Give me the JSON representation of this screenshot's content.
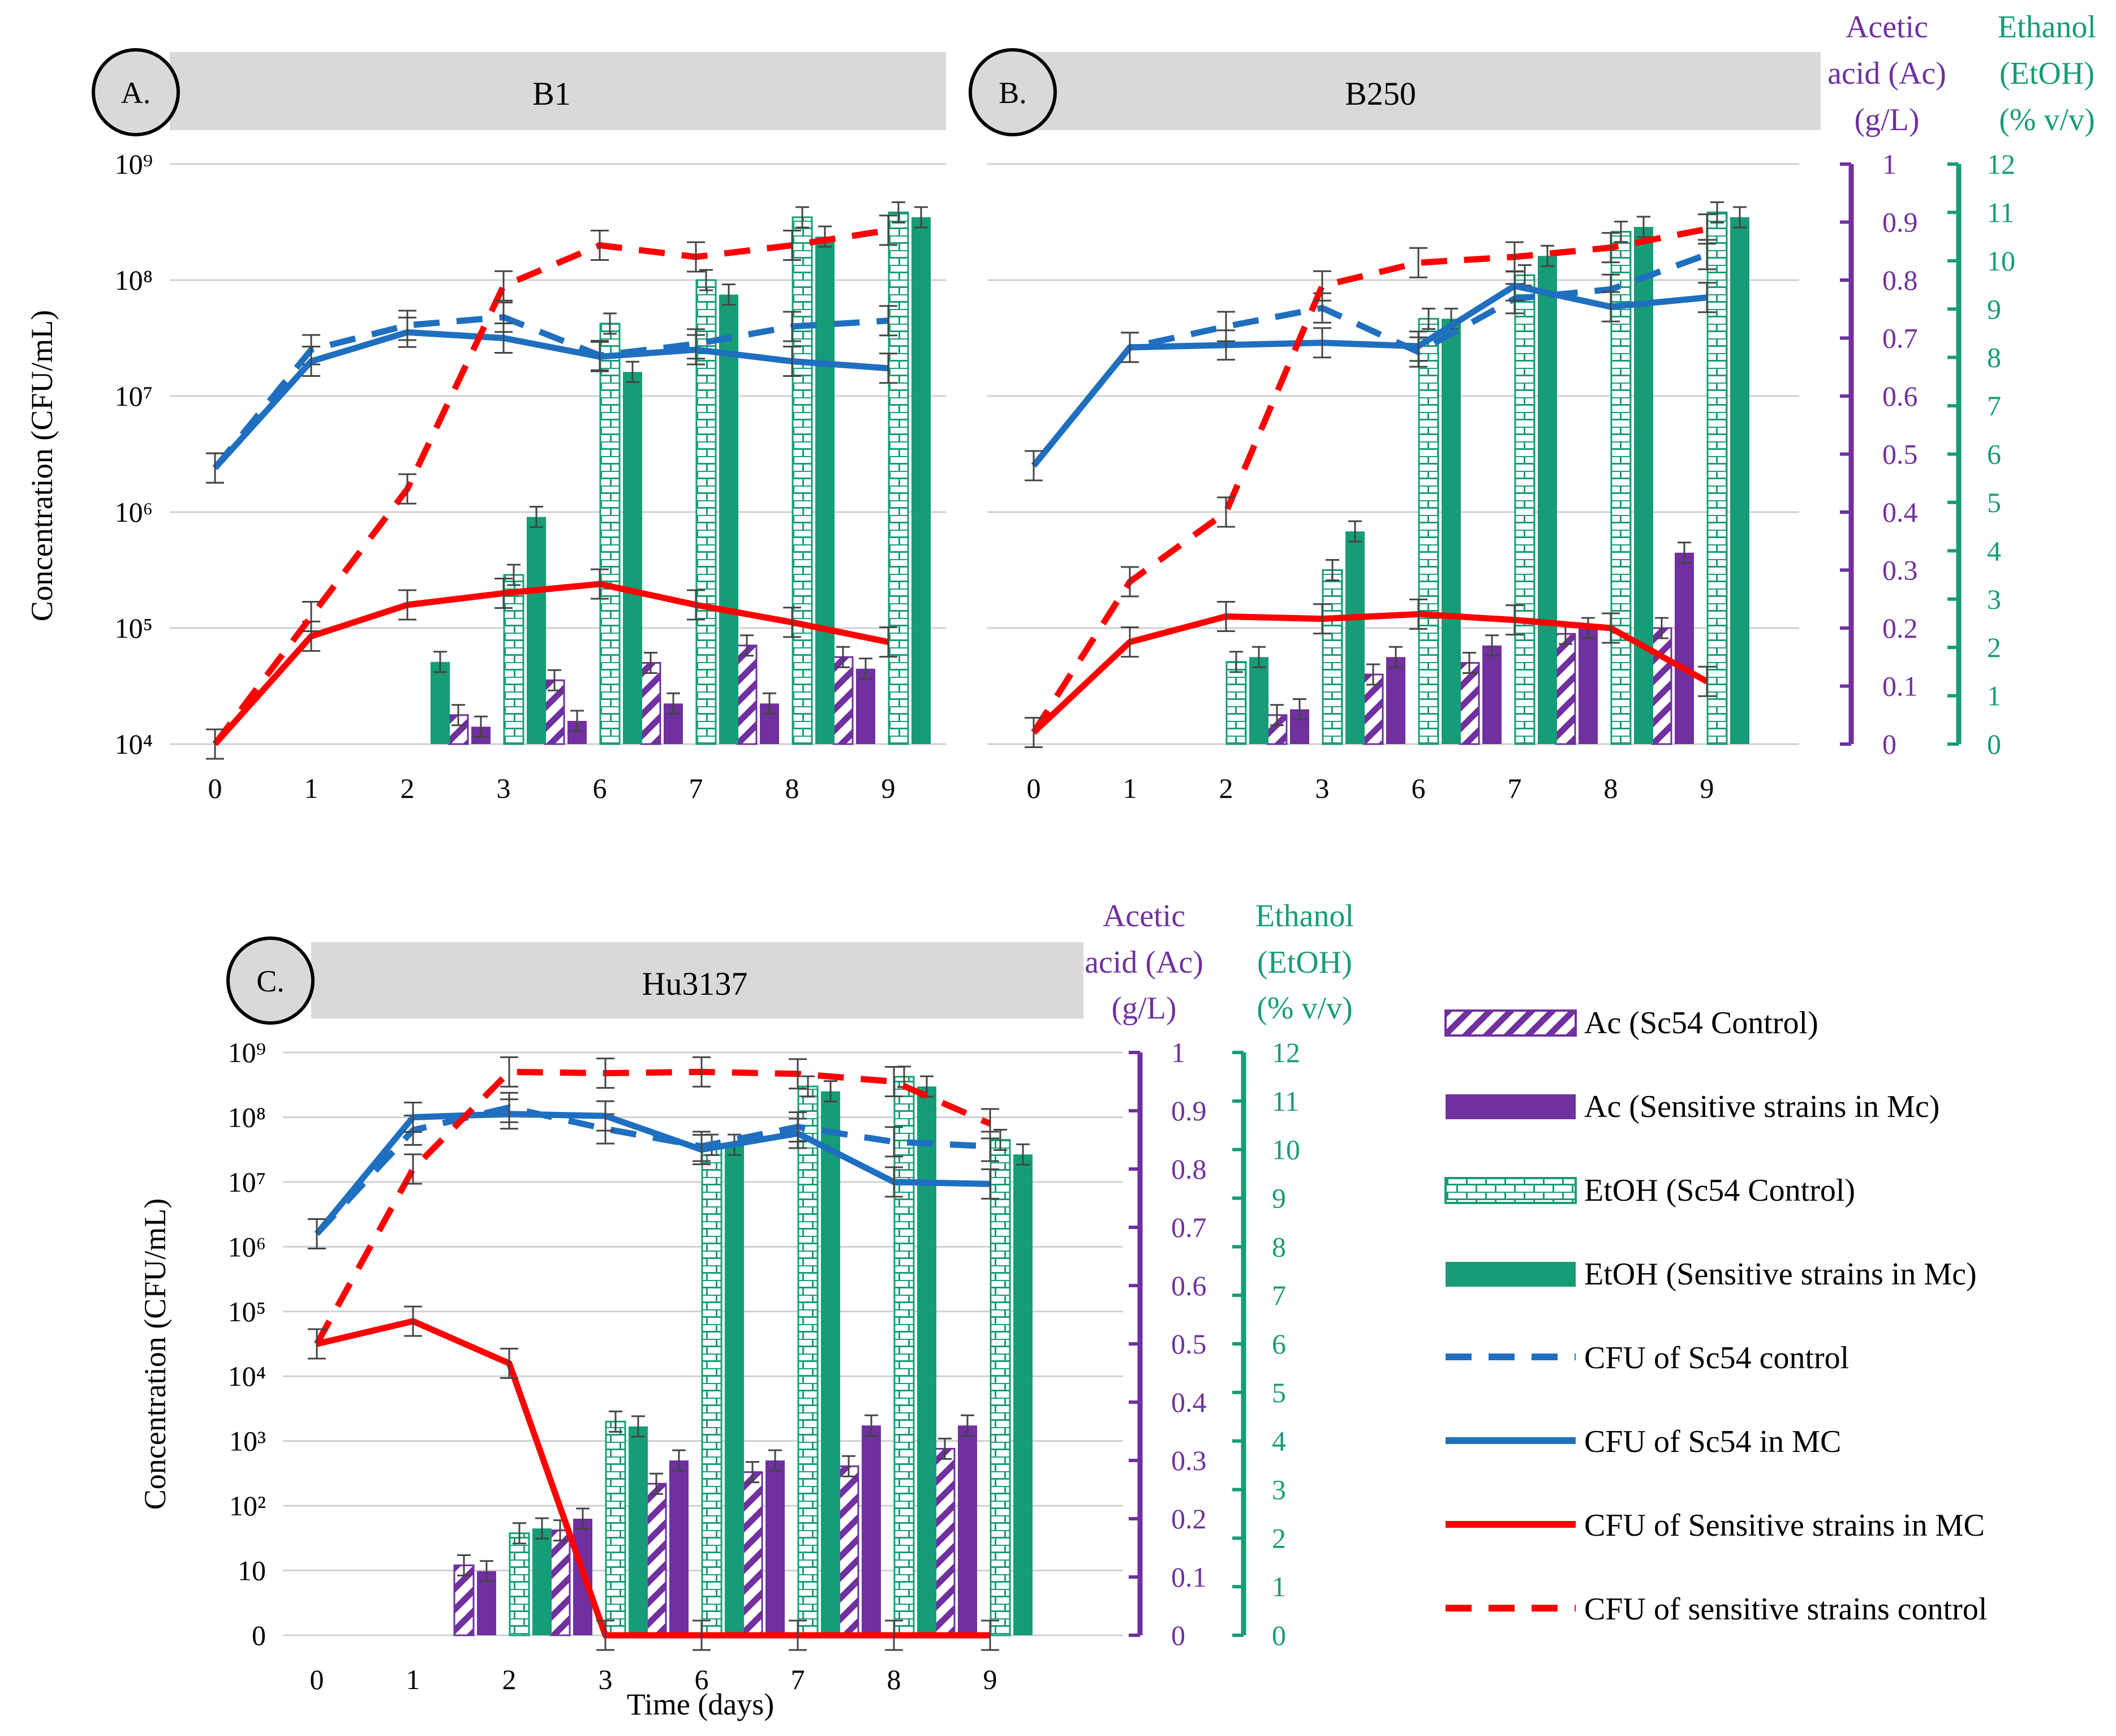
{
  "panels": [
    {
      "letter": "A.",
      "title": "B1",
      "y_label": "Concentration (CFU/mL)",
      "x_label": ""
    },
    {
      "letter": "B.",
      "title": "B250",
      "y_label": "",
      "x_label": ""
    },
    {
      "letter": "C.",
      "title": "Hu3137",
      "y_label": "Concentration (CFU/mL)",
      "x_label": "Time (days)"
    }
  ],
  "axes_titles": {
    "acetic": [
      "Acetic",
      "acid (Ac)",
      "(g/L)"
    ],
    "ethanol": [
      "Ethanol",
      "(EtOH)",
      "(% v/v)"
    ]
  },
  "legend": [
    "Ac (Sc54 Control)",
    "Ac (Sensitive strains in Mc)",
    "EtOH (Sc54 Control)",
    "EtOH (Sensitive strains in Mc)",
    "CFU of Sc54 control",
    "CFU of Sc54 in MC",
    "CFU of Sensitive strains in MC",
    "CFU of sensitive strains control"
  ],
  "colors": {
    "purple": "#7030a0",
    "green": "#169c76",
    "blue": "#1f6fc0",
    "red": "#ff0000",
    "header_gray": "#d9d9d9"
  },
  "chart_data": [
    {
      "type": "bar",
      "panel": "A",
      "title": "B1",
      "categories": [
        "0",
        "1",
        "2",
        "3",
        "6",
        "7",
        "8",
        "9"
      ],
      "xlabel": "",
      "ylabel": "Concentration (CFU/mL)",
      "y_ticks": [
        "10⁴",
        "10⁵",
        "10⁶",
        "10⁷",
        "10⁸",
        "10⁹"
      ],
      "y_log_range": [
        4,
        9
      ],
      "y2_label": "Acetic acid (Ac) (g/L)",
      "y2_range": [
        0,
        1
      ],
      "y3_label": "Ethanol (EtOH) (% v/v)",
      "y3_range": [
        0,
        12
      ],
      "bar_series": [
        {
          "name": "Ac (Sc54 Control)",
          "axis": "acetic",
          "values": [
            0,
            0,
            0,
            0.05,
            0.11,
            0.14,
            0.17,
            0.15
          ]
        },
        {
          "name": "Ac (Sensitive strains in Mc)",
          "axis": "acetic",
          "values": [
            0,
            0,
            0,
            0.03,
            0.04,
            0.07,
            0.07,
            0.13
          ]
        },
        {
          "name": "EtOH (Sc54 Control)",
          "axis": "ethanol",
          "values": [
            0,
            0,
            0,
            3.5,
            8.7,
            9.6,
            10.9,
            11.0
          ]
        },
        {
          "name": "EtOH (Sensitive strains in Mc)",
          "axis": "ethanol",
          "values": [
            0,
            0,
            1.7,
            4.7,
            7.7,
            9.3,
            10.5,
            10.9
          ]
        }
      ],
      "line_series": [
        {
          "name": "CFU of Sc54 control",
          "log10": [
            6.38,
            7.4,
            7.61,
            7.68,
            7.35,
            7.45,
            7.6,
            7.65
          ]
        },
        {
          "name": "CFU of Sc54 in MC",
          "log10": [
            6.38,
            7.3,
            7.55,
            7.5,
            7.34,
            7.4,
            7.3,
            7.24
          ]
        },
        {
          "name": "CFU of Sensitive strains in MC",
          "log10": [
            4.0,
            4.93,
            5.2,
            5.3,
            5.38,
            5.2,
            5.05,
            4.88
          ]
        },
        {
          "name": "CFU of sensitive strains control",
          "log10": [
            4.0,
            5.1,
            6.2,
            7.95,
            8.3,
            8.2,
            8.3,
            8.43
          ]
        }
      ]
    },
    {
      "type": "bar",
      "panel": "B",
      "title": "B250",
      "categories": [
        "0",
        "1",
        "2",
        "3",
        "6",
        "7",
        "8",
        "9"
      ],
      "xlabel": "",
      "ylabel": "",
      "y_log_range": [
        4,
        9
      ],
      "y2_label": "Acetic acid (Ac) (g/L)",
      "y2_ticks": [
        "0",
        "0.1",
        "0.2",
        "0.3",
        "0.4",
        "0.5",
        "0.6",
        "0.7",
        "0.8",
        "0.9",
        "1"
      ],
      "y2_range": [
        0,
        1
      ],
      "y3_label": "Ethanol (EtOH) (% v/v)",
      "y3_ticks": [
        "0",
        "1",
        "2",
        "3",
        "4",
        "5",
        "6",
        "7",
        "8",
        "9",
        "10",
        "11",
        "12"
      ],
      "y3_range": [
        0,
        12
      ],
      "bar_series": [
        {
          "name": "Ac (Sc54 Control)",
          "axis": "acetic",
          "values": [
            0,
            0,
            0,
            0.05,
            0.12,
            0.14,
            0.19,
            0.2
          ]
        },
        {
          "name": "Ac (Sensitive strains in Mc)",
          "axis": "acetic",
          "values": [
            0,
            0,
            0,
            0.06,
            0.15,
            0.17,
            0.2,
            0.33
          ]
        },
        {
          "name": "EtOH (Sc54 Control)",
          "axis": "ethanol",
          "values": [
            0,
            0,
            1.7,
            3.6,
            8.8,
            9.7,
            10.6,
            11.0
          ]
        },
        {
          "name": "EtOH (Sensitive strains in Mc)",
          "axis": "ethanol",
          "values": [
            0,
            0,
            1.8,
            4.4,
            8.8,
            10.1,
            10.7,
            10.9
          ]
        }
      ],
      "line_series": [
        {
          "name": "CFU of Sc54 control",
          "log10": [
            6.4,
            7.42,
            7.6,
            7.76,
            7.38,
            7.84,
            7.92,
            8.22
          ]
        },
        {
          "name": "CFU of Sc54 in MC",
          "log10": [
            6.4,
            7.42,
            7.44,
            7.46,
            7.43,
            7.95,
            7.77,
            7.85
          ]
        },
        {
          "name": "CFU of Sensitive strains in MC",
          "log10": [
            4.1,
            4.88,
            5.1,
            5.08,
            5.12,
            5.07,
            5.0,
            4.54
          ]
        },
        {
          "name": "CFU of sensitive strains control",
          "log10": [
            4.1,
            5.4,
            6.0,
            7.95,
            8.15,
            8.2,
            8.28,
            8.44
          ]
        }
      ]
    },
    {
      "type": "bar",
      "panel": "C",
      "title": "Hu3137",
      "categories": [
        "0",
        "1",
        "2",
        "3",
        "6",
        "7",
        "8",
        "9"
      ],
      "xlabel": "Time (days)",
      "ylabel": "Concentration (CFU/mL)",
      "y_ticks": [
        "0",
        "10",
        "10²",
        "10³",
        "10⁴",
        "10⁵",
        "10⁶",
        "10⁷",
        "10⁸",
        "10⁹"
      ],
      "y_log_range": [
        0,
        9
      ],
      "y2_label": "Acetic acid (Ac) (g/L)",
      "y2_ticks": [
        "0",
        "0.1",
        "0.2",
        "0.3",
        "0.4",
        "0.5",
        "0.6",
        "0.7",
        "0.8",
        "0.9",
        "1"
      ],
      "y2_range": [
        0,
        1
      ],
      "y3_label": "Ethanol (EtOH) (% v/v)",
      "y3_ticks": [
        "0",
        "1",
        "2",
        "3",
        "4",
        "5",
        "6",
        "7",
        "8",
        "9",
        "10",
        "11",
        "12"
      ],
      "y3_range": [
        0,
        12
      ],
      "bar_series": [
        {
          "name": "Ac (Sc54 Control)",
          "axis": "acetic",
          "values": [
            0,
            0,
            0.12,
            0.18,
            0.26,
            0.28,
            0.29,
            0.32
          ]
        },
        {
          "name": "Ac (Sensitive strains in Mc)",
          "axis": "acetic",
          "values": [
            0,
            0,
            0.11,
            0.2,
            0.3,
            0.3,
            0.36,
            0.36
          ]
        },
        {
          "name": "EtOH (Sc54 Control)",
          "axis": "ethanol",
          "values": [
            0,
            0,
            2.1,
            4.4,
            10.1,
            11.3,
            11.5,
            10.2
          ]
        },
        {
          "name": "EtOH (Sensitive strains in Mc)",
          "axis": "ethanol",
          "values": [
            0,
            0,
            2.2,
            4.3,
            10.1,
            11.2,
            11.3,
            9.9
          ]
        }
      ],
      "line_series": [
        {
          "name": "CFU of Sc54 control",
          "log10": [
            6.2,
            7.8,
            8.15,
            7.82,
            7.55,
            7.85,
            7.62,
            7.55
          ]
        },
        {
          "name": "CFU of Sc54 in MC",
          "log10": [
            6.2,
            8.0,
            8.05,
            8.02,
            7.5,
            7.75,
            7.0,
            6.97
          ]
        },
        {
          "name": "CFU of Sensitive strains in MC",
          "log10": [
            4.5,
            4.85,
            4.2,
            0,
            0,
            0,
            0,
            0
          ]
        },
        {
          "name": "CFU of sensitive strains control",
          "log10": [
            4.5,
            7.2,
            8.7,
            8.68,
            8.7,
            8.67,
            8.55,
            7.9
          ]
        }
      ]
    }
  ]
}
